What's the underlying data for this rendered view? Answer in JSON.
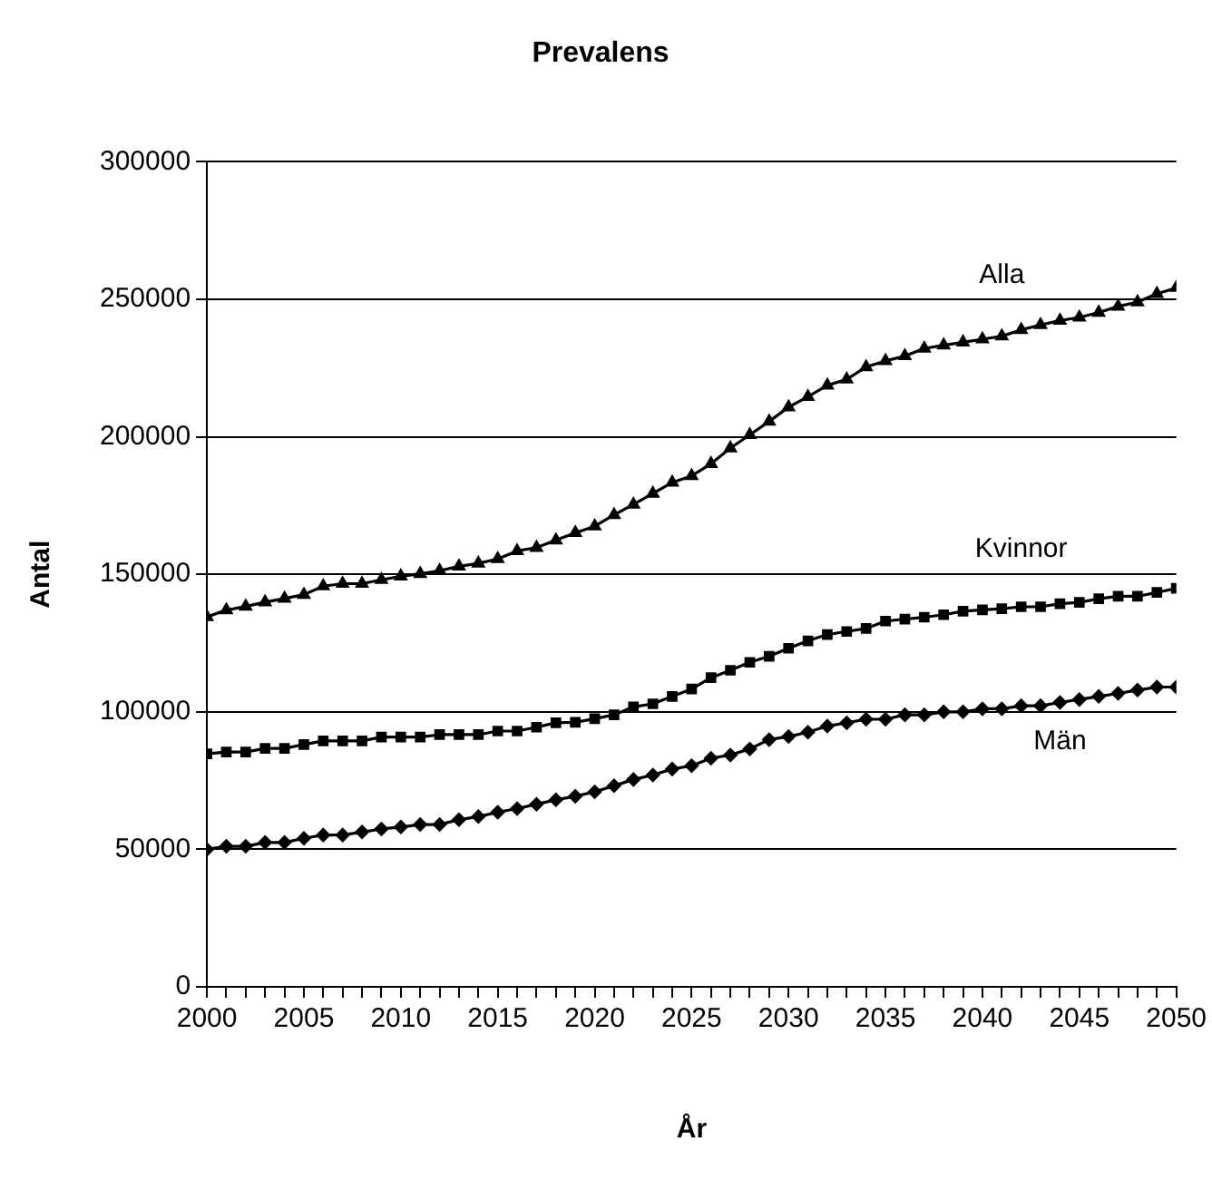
{
  "chart_data": {
    "type": "line",
    "title": "Prevalens",
    "xlabel": "År",
    "ylabel": "Antal",
    "x": [
      2000,
      2001,
      2002,
      2003,
      2004,
      2005,
      2006,
      2007,
      2008,
      2009,
      2010,
      2011,
      2012,
      2013,
      2014,
      2015,
      2016,
      2017,
      2018,
      2019,
      2020,
      2021,
      2022,
      2023,
      2024,
      2025,
      2026,
      2027,
      2028,
      2029,
      2030,
      2031,
      2032,
      2033,
      2034,
      2035,
      2036,
      2037,
      2038,
      2039,
      2040,
      2041,
      2042,
      2043,
      2044,
      2045,
      2046,
      2047,
      2048,
      2049,
      2050
    ],
    "series": [
      {
        "name": "Alla",
        "color": "#000000",
        "marker": "triangle",
        "values": [
          134500,
          137000,
          138300,
          139900,
          141200,
          142600,
          145700,
          146600,
          146600,
          148000,
          149300,
          150200,
          151300,
          152900,
          154000,
          155600,
          158500,
          159700,
          162400,
          165100,
          167500,
          171600,
          175400,
          179400,
          183400,
          185800,
          190200,
          195900,
          200700,
          205600,
          210800,
          214600,
          218700,
          220900,
          225400,
          227600,
          229400,
          232100,
          233300,
          234400,
          235500,
          236600,
          238900,
          240700,
          242300,
          243400,
          245200,
          247400,
          249000,
          252000,
          254200
        ]
      },
      {
        "name": "Kvinnor",
        "color": "#000000",
        "marker": "square",
        "values": [
          84700,
          85400,
          85400,
          86700,
          86700,
          88100,
          89400,
          89400,
          89400,
          90800,
          90800,
          90800,
          91700,
          91700,
          91700,
          93000,
          93000,
          94400,
          96000,
          96200,
          97500,
          98900,
          101800,
          102900,
          105600,
          108300,
          112400,
          115100,
          118000,
          120200,
          123100,
          125800,
          128100,
          129200,
          130300,
          133000,
          133700,
          134400,
          135300,
          136600,
          137100,
          137500,
          138200,
          138200,
          139300,
          139800,
          141100,
          142000,
          142000,
          143400,
          144900
        ]
      },
      {
        "name": "Män",
        "color": "#000000",
        "marker": "diamond",
        "values": [
          50000,
          51100,
          51100,
          52500,
          52500,
          54000,
          55200,
          55200,
          56300,
          57400,
          58100,
          59000,
          59000,
          60800,
          61900,
          63500,
          64800,
          66400,
          68000,
          69300,
          70900,
          73100,
          75400,
          77000,
          79200,
          80400,
          83100,
          84300,
          86500,
          89900,
          91000,
          92600,
          94800,
          96000,
          97300,
          97300,
          98900,
          98900,
          100000,
          100000,
          101100,
          101100,
          102200,
          102200,
          103400,
          104500,
          105600,
          106700,
          107900,
          109000,
          109000
        ]
      }
    ],
    "xlim": [
      2000,
      2050
    ],
    "xticks": [
      2000,
      {
        "value": 2001,
        "label": null
      },
      {
        "value": 2002,
        "label": null
      },
      {
        "value": 2003,
        "label": null
      },
      {
        "value": 2004,
        "label": null
      },
      2005,
      {
        "value": 2006,
        "label": null
      },
      {
        "value": 2007,
        "label": null
      },
      {
        "value": 2008,
        "label": null
      },
      {
        "value": 2009,
        "label": null
      },
      2010,
      {
        "value": 2011,
        "label": null
      },
      {
        "value": 2012,
        "label": null
      },
      {
        "value": 2013,
        "label": null
      },
      {
        "value": 2014,
        "label": null
      },
      2015,
      {
        "value": 2016,
        "label": null
      },
      {
        "value": 2017,
        "label": null
      },
      {
        "value": 2018,
        "label": null
      },
      {
        "value": 2019,
        "label": null
      },
      2020,
      {
        "value": 2021,
        "label": null
      },
      {
        "value": 2022,
        "label": null
      },
      {
        "value": 2023,
        "label": null
      },
      {
        "value": 2024,
        "label": null
      },
      2025,
      {
        "value": 2026,
        "label": null
      },
      {
        "value": 2027,
        "label": null
      },
      {
        "value": 2028,
        "label": null
      },
      {
        "value": 2029,
        "label": null
      },
      2030,
      {
        "value": 2031,
        "label": null
      },
      {
        "value": 2032,
        "label": null
      },
      {
        "value": 2033,
        "label": null
      },
      {
        "value": 2034,
        "label": null
      },
      2035,
      {
        "value": 2036,
        "label": null
      },
      {
        "value": 2037,
        "label": null
      },
      {
        "value": 2038,
        "label": null
      },
      {
        "value": 2039,
        "label": null
      },
      2040,
      {
        "value": 2041,
        "label": null
      },
      {
        "value": 2042,
        "label": null
      },
      {
        "value": 2043,
        "label": null
      },
      {
        "value": 2044,
        "label": null
      },
      2045,
      {
        "value": 2046,
        "label": null
      },
      {
        "value": 2047,
        "label": null
      },
      {
        "value": 2048,
        "label": null
      },
      {
        "value": 2049,
        "label": null
      },
      2050
    ],
    "ylim": [
      0,
      300000
    ],
    "yticks": [
      0,
      50000,
      100000,
      150000,
      200000,
      250000,
      300000
    ],
    "grid": "y",
    "legend": false,
    "line_style": "solid"
  }
}
